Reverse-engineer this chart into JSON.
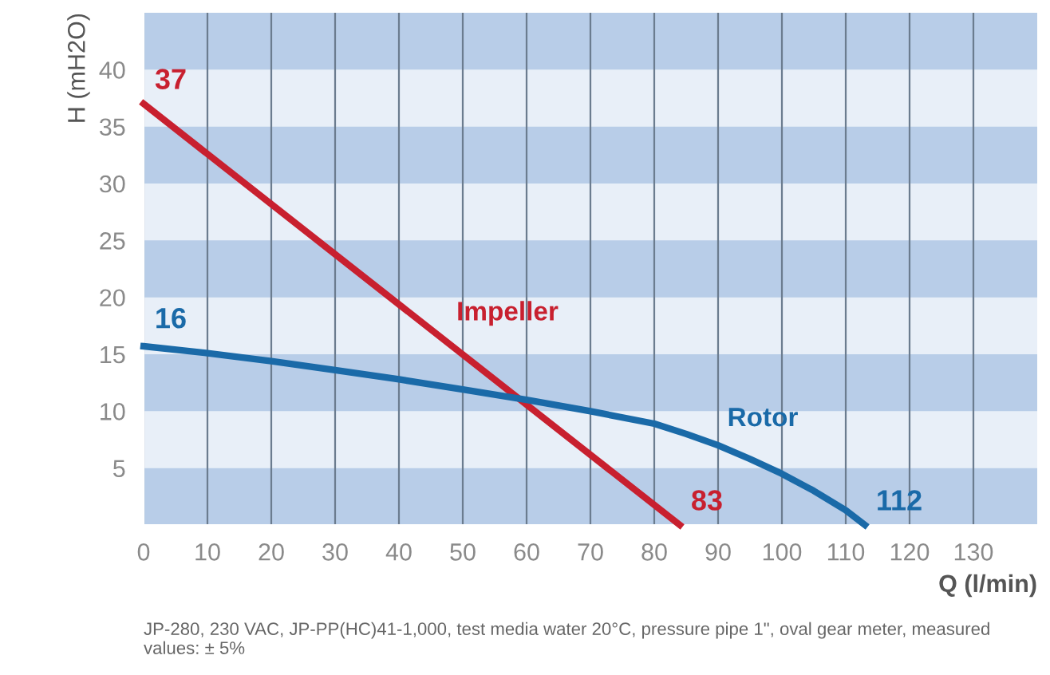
{
  "chart_data": {
    "type": "line",
    "xlabel": "Q (l/min)",
    "ylabel": "H (mH2O)",
    "xlim": [
      0,
      140
    ],
    "xticks": [
      0,
      10,
      20,
      30,
      40,
      50,
      60,
      70,
      80,
      90,
      100,
      110,
      120,
      130
    ],
    "ylim": [
      0,
      45
    ],
    "yticks": [
      5,
      10,
      15,
      20,
      25,
      30,
      35,
      40
    ],
    "grid": "x",
    "legend": false,
    "marker": "none",
    "line_style": "solid",
    "bands": [
      {
        "axis": "y",
        "from": 0,
        "to": 5,
        "color": "#b8cde8"
      },
      {
        "axis": "y",
        "from": 10,
        "to": 15,
        "color": "#b8cde8"
      },
      {
        "axis": "y",
        "from": 20,
        "to": 25,
        "color": "#b8cde8"
      },
      {
        "axis": "y",
        "from": 30,
        "to": 35,
        "color": "#b8cde8"
      },
      {
        "axis": "y",
        "from": 40,
        "to": 45,
        "color": "#b8cde8"
      }
    ],
    "series": [
      {
        "name": "Impeller",
        "color": "#c8202f",
        "x": [
          0,
          84
        ],
        "values": [
          37,
          0
        ]
      },
      {
        "name": "Rotor",
        "color": "#1a6aa8",
        "x": [
          0,
          10,
          20,
          30,
          40,
          50,
          60,
          70,
          80,
          85,
          90,
          95,
          100,
          105,
          110,
          113
        ],
        "values": [
          15.7,
          15.1,
          14.4,
          13.6,
          12.8,
          11.9,
          11.0,
          10.0,
          8.9,
          8.0,
          7.0,
          5.8,
          4.5,
          3.0,
          1.3,
          0
        ]
      }
    ],
    "annotations": [
      {
        "text": "37",
        "x": 0,
        "y": 37
      },
      {
        "text": "83",
        "x": 84,
        "y": 0
      },
      {
        "text": "16",
        "x": 0,
        "y": 16
      },
      {
        "text": "112",
        "x": 113,
        "y": 0
      },
      "JP-280, 230 VAC, JP-PP(HC)41-1,000, test media water 20°C, pressure pipe 1\", oval gear meter, measured values: ± 5%"
    ]
  }
}
